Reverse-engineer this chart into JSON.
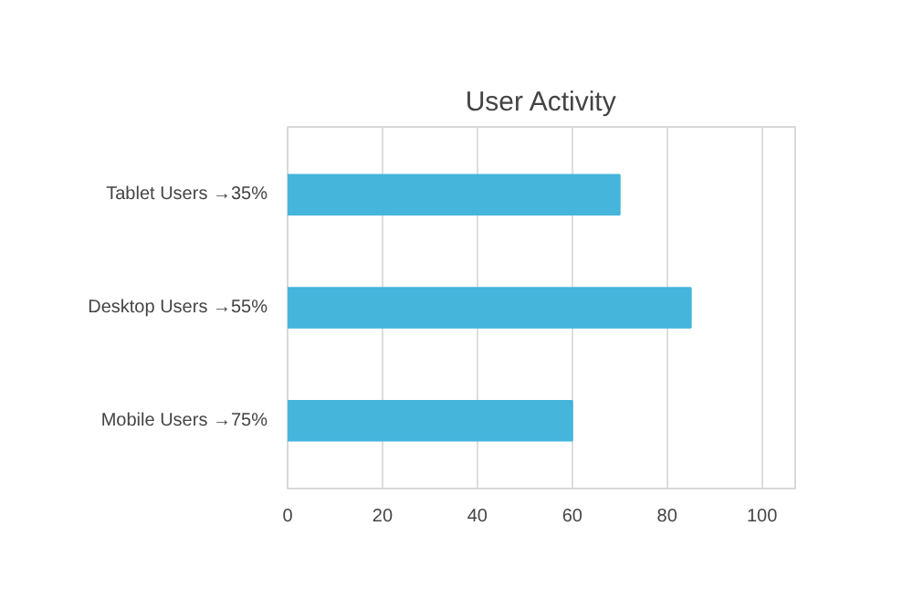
{
  "chart_data": {
    "type": "bar",
    "orientation": "horizontal",
    "title": "User Activity",
    "categories": [
      "Tablet Users →35%",
      "Desktop Users →55%",
      "Mobile Users →75%"
    ],
    "values": [
      70,
      85,
      60
    ],
    "color": "#45b5dc",
    "xlim": [
      0,
      107
    ],
    "xticks": [
      0,
      20,
      40,
      60,
      80,
      100
    ],
    "grid": "x"
  }
}
